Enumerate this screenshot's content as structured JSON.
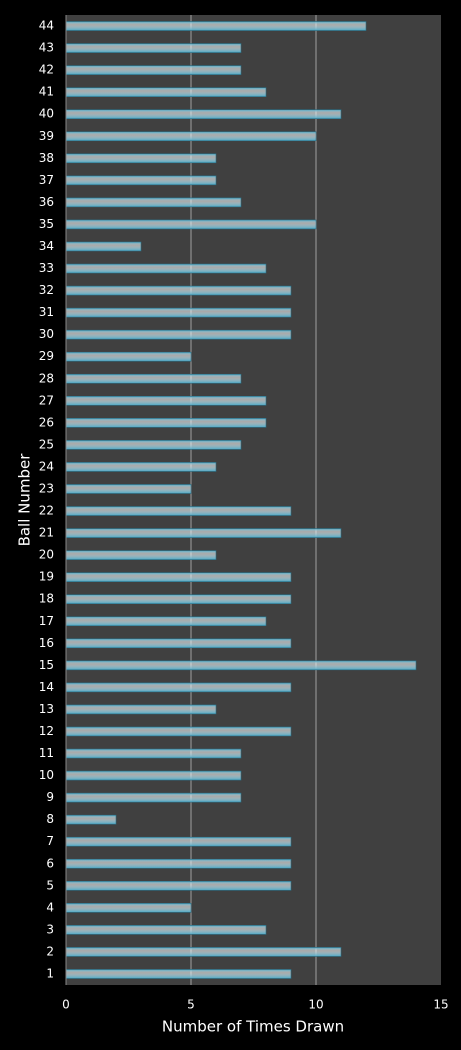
{
  "chart_data": {
    "type": "bar",
    "orientation": "horizontal",
    "xlabel": "Number of Times Drawn",
    "ylabel": "Ball Number",
    "categories": [
      "1",
      "2",
      "3",
      "4",
      "5",
      "6",
      "7",
      "8",
      "9",
      "10",
      "11",
      "12",
      "13",
      "14",
      "15",
      "16",
      "17",
      "18",
      "19",
      "20",
      "21",
      "22",
      "23",
      "24",
      "25",
      "26",
      "27",
      "28",
      "29",
      "30",
      "31",
      "32",
      "33",
      "34",
      "35",
      "36",
      "37",
      "38",
      "39",
      "40",
      "41",
      "42",
      "43",
      "44"
    ],
    "values": [
      9,
      11,
      8,
      5,
      9,
      9,
      9,
      2,
      7,
      7,
      7,
      9,
      6,
      9,
      14,
      9,
      8,
      9,
      9,
      6,
      11,
      9,
      5,
      6,
      7,
      8,
      8,
      7,
      5,
      9,
      9,
      9,
      8,
      3,
      10,
      7,
      6,
      6,
      10,
      11,
      8,
      7,
      7,
      12
    ],
    "color": "#4aa8c6",
    "xlim": [
      0,
      15
    ],
    "xticks": [
      0,
      5,
      10,
      15
    ],
    "grid": true
  }
}
